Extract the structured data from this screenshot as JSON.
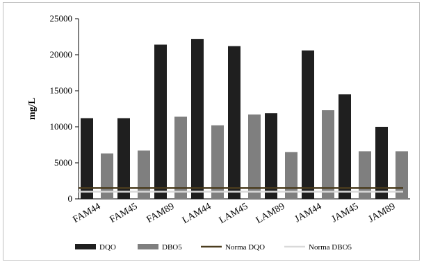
{
  "chart_data": {
    "type": "bar",
    "categories": [
      "FAM44",
      "FAM45",
      "FAM89",
      "LAM44",
      "LAM45",
      "LAM89",
      "JAM44",
      "JAM45",
      "JAM89"
    ],
    "series": [
      {
        "name": "DQO",
        "values": [
          11200,
          11200,
          21400,
          22200,
          21200,
          11900,
          20600,
          14500,
          10000
        ],
        "color": "#1f1f1f"
      },
      {
        "name": "DBO5",
        "values": [
          6300,
          6700,
          11400,
          10200,
          11700,
          6500,
          12300,
          6600,
          6600
        ],
        "color": "#7f7f7f"
      }
    ],
    "reference_lines": [
      {
        "name": "Norma DQO",
        "value": 1500,
        "color": "#4a3c1e"
      },
      {
        "name": "Norma DBO5",
        "value": 1000,
        "color": "#d9d9d9"
      }
    ],
    "title": "",
    "xlabel": "",
    "ylabel": "mg/L",
    "ylim": [
      0,
      25000
    ],
    "yticks": [
      0,
      5000,
      10000,
      15000,
      20000,
      25000
    ],
    "grid": false,
    "legend": "bottom"
  }
}
